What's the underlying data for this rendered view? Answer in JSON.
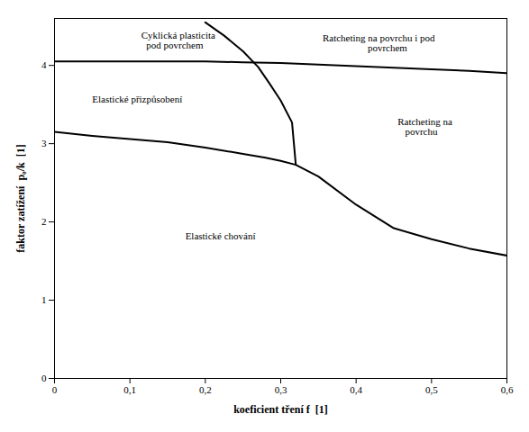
{
  "chart_data": {
    "type": "line",
    "xlabel": "koeficient tření f  [1]",
    "ylabel": "faktor zatížení  p₀/k  [1]",
    "xlim": [
      0,
      0.6
    ],
    "ylim": [
      0,
      4.6
    ],
    "xticks": [
      0,
      {
        "value": 0.1,
        "label": "0,1"
      },
      {
        "value": 0.2,
        "label": "0,2"
      },
      {
        "value": 0.3,
        "label": "0,3"
      },
      {
        "value": 0.4,
        "label": "0,4"
      },
      {
        "value": 0.5,
        "label": "0,5"
      },
      {
        "value": 0.6,
        "label": "0,6"
      }
    ],
    "yticks": [
      0,
      1,
      2,
      3,
      4
    ],
    "grid": false,
    "series": [
      {
        "color": "#000000",
        "x": [
          0.0,
          0.05,
          0.1,
          0.15,
          0.2,
          0.25,
          0.3,
          0.35,
          0.4,
          0.45,
          0.5,
          0.55,
          0.6
        ],
        "values": [
          4.05,
          4.05,
          4.05,
          4.05,
          4.05,
          4.04,
          4.03,
          4.01,
          3.99,
          3.97,
          3.95,
          3.93,
          3.9
        ]
      },
      {
        "color": "#000000",
        "x": [
          0.0,
          0.05,
          0.1,
          0.15,
          0.2,
          0.25,
          0.28,
          0.3,
          0.32,
          0.35,
          0.4,
          0.45,
          0.5,
          0.55,
          0.6
        ],
        "values": [
          3.15,
          3.1,
          3.06,
          3.02,
          2.95,
          2.87,
          2.82,
          2.78,
          2.73,
          2.58,
          2.22,
          1.92,
          1.78,
          1.66,
          1.57
        ]
      },
      {
        "color": "#000000",
        "x": [
          0.2,
          0.225,
          0.25,
          0.27,
          0.285,
          0.3,
          0.315,
          0.32
        ],
        "values": [
          4.55,
          4.38,
          4.18,
          3.98,
          3.77,
          3.55,
          3.27,
          2.73
        ]
      }
    ],
    "annotations": [
      {
        "text": "Cyklická plasticita\n  pod povrchem",
        "x": 0.115,
        "y": 4.32
      },
      {
        "text": "Ratcheting na povrchu i pod\n       povrchem",
        "x": 0.43,
        "y": 4.28
      },
      {
        "text": "Elastické přizpůsobení",
        "x": 0.05,
        "y": 3.56
      },
      {
        "text": "Ratcheting na\n   povrchu",
        "x": 0.455,
        "y": 3.22
      },
      {
        "text": "Elastické chování",
        "x": 0.22,
        "y": 1.82
      }
    ]
  }
}
